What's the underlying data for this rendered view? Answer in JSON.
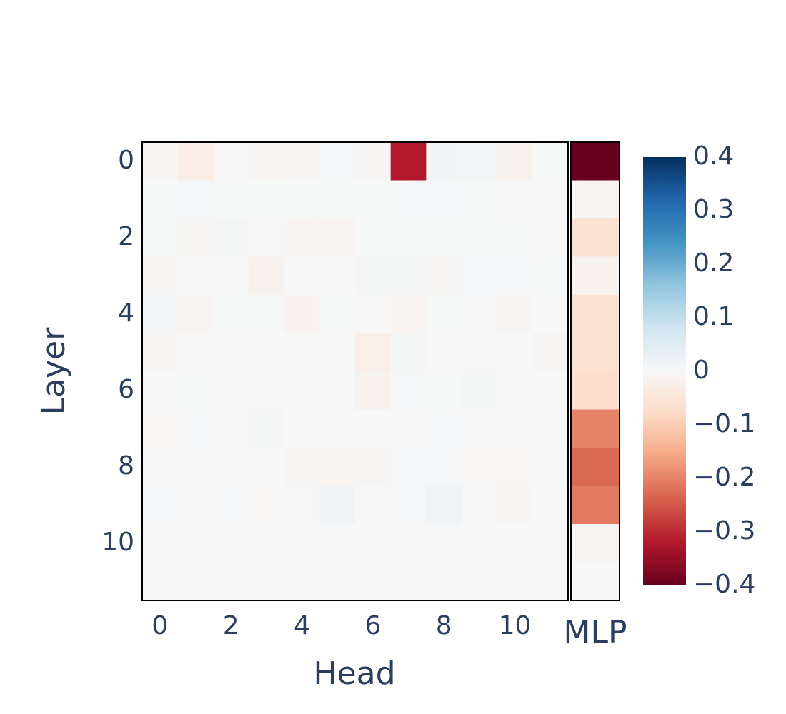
{
  "chart_data": {
    "type": "heatmap",
    "x_label": "Head",
    "y_label": "Layer",
    "x": [
      0,
      1,
      2,
      3,
      4,
      5,
      6,
      7,
      8,
      9,
      10,
      11
    ],
    "y": [
      0,
      1,
      2,
      3,
      4,
      5,
      6,
      7,
      8,
      9,
      10,
      11
    ],
    "xticks": [
      0,
      2,
      4,
      6,
      8,
      10
    ],
    "yticks": [
      0,
      2,
      4,
      6,
      8,
      10
    ],
    "z": [
      [
        -0.005,
        -0.03,
        0.003,
        -0.01,
        -0.005,
        0.004,
        -0.006,
        -0.32,
        0.01,
        0.008,
        -0.015,
        0.002
      ],
      [
        0.002,
        0.004,
        0.002,
        0.002,
        0.002,
        0.002,
        0.002,
        0.004,
        0.004,
        0.002,
        0.001,
        0.001
      ],
      [
        0.002,
        -0.006,
        0.006,
        0.003,
        -0.01,
        -0.01,
        0.002,
        0.002,
        0.002,
        0.002,
        0.002,
        0.001
      ],
      [
        -0.005,
        0.001,
        0.003,
        -0.015,
        0.001,
        0.001,
        0.006,
        0.006,
        -0.006,
        0.005,
        0.004,
        0.002
      ],
      [
        0.008,
        -0.008,
        0.002,
        0.002,
        -0.012,
        0.002,
        0.001,
        -0.008,
        0.002,
        0.003,
        -0.006,
        0.001
      ],
      [
        -0.006,
        0.001,
        0.001,
        0.001,
        0.001,
        0.001,
        -0.025,
        0.006,
        0.001,
        0.003,
        0.001,
        -0.006
      ],
      [
        0.001,
        0.002,
        0.003,
        0.001,
        0.001,
        0.001,
        -0.014,
        0.004,
        0.002,
        0.006,
        0.001,
        0.001
      ],
      [
        -0.004,
        0.004,
        0.003,
        0.006,
        0.001,
        0.001,
        0.001,
        0.001,
        0.005,
        0.001,
        0.001,
        0.001
      ],
      [
        0.001,
        0.001,
        0.001,
        0.001,
        -0.005,
        -0.008,
        -0.006,
        0.004,
        0.004,
        -0.003,
        -0.004,
        0.001
      ],
      [
        0.004,
        0.001,
        0.004,
        -0.003,
        0.003,
        0.012,
        0.001,
        0.005,
        0.015,
        0.001,
        -0.006,
        0.001
      ],
      [
        0,
        0,
        0,
        0,
        0,
        0,
        0,
        0,
        0,
        0,
        0,
        0
      ],
      [
        0,
        0,
        0,
        0,
        0,
        0,
        0,
        0,
        0,
        0,
        0,
        0
      ]
    ],
    "mlp": {
      "label": "MLP",
      "values": [
        -0.4,
        -0.01,
        -0.06,
        -0.015,
        -0.06,
        -0.06,
        -0.07,
        -0.2,
        -0.23,
        -0.21,
        -0.01,
        0
      ]
    },
    "zlim": [
      -0.4,
      0.4
    ],
    "colorscale": [
      "#67001f",
      "#b2182b",
      "#d6604d",
      "#f4a582",
      "#fddbc7",
      "#f7f7f7",
      "#d1e5f0",
      "#92c5de",
      "#4393c3",
      "#2166ac",
      "#053061"
    ],
    "colorbar_ticks": [
      0.4,
      0.3,
      0.2,
      0.1,
      0,
      {
        "value": -0.1,
        "label": "−0.1"
      },
      {
        "value": -0.2,
        "label": "−0.2"
      },
      {
        "value": -0.3,
        "label": "−0.3"
      },
      {
        "value": -0.4,
        "label": "−0.4"
      }
    ]
  }
}
